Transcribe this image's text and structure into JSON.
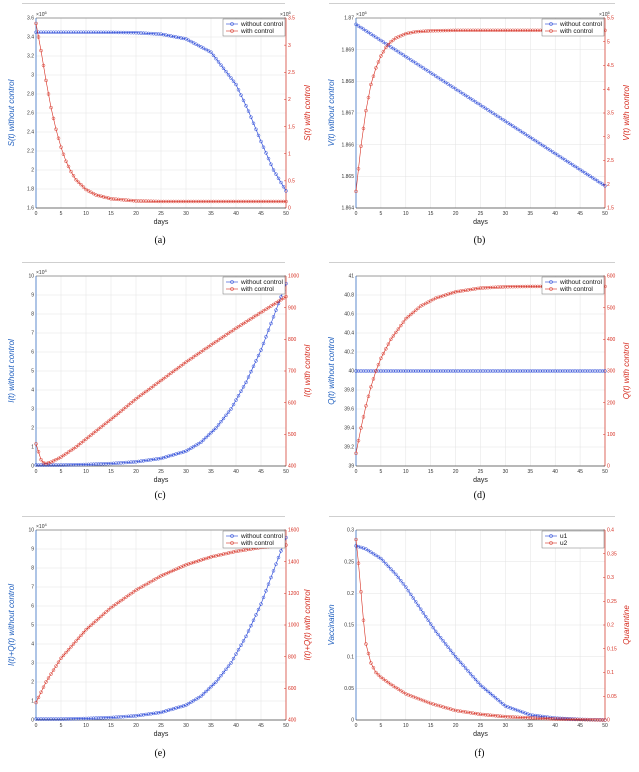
{
  "figure": {
    "captions": [
      "(a)",
      "(b)",
      "(c)",
      "(d)",
      "(e)",
      "(f)"
    ]
  },
  "chart_data": [
    {
      "type": "line",
      "panel_caption": "(a)",
      "xlabel": "days",
      "x_ticks": [
        0,
        5,
        10,
        15,
        20,
        25,
        30,
        35,
        40,
        45,
        50
      ],
      "xlim": [
        0,
        50
      ],
      "ylabel_left": "S(t) without control",
      "ylabel_right": "S(t) with control",
      "left_axis": {
        "ylim": [
          1.6,
          3.6
        ],
        "ticks": [
          "1.6",
          "1.8",
          "2",
          "2.2",
          "2.4",
          "2.6",
          "2.8",
          "3",
          "3.2",
          "3.4",
          "3.6"
        ],
        "exponent": "×10^6"
      },
      "right_axis": {
        "ylim": [
          0,
          3.5
        ],
        "ticks": [
          "0",
          "0.5",
          "1",
          "1.5",
          "2",
          "2.5",
          "3",
          "3.5"
        ],
        "exponent": "×10^6"
      },
      "legend": [
        "without control",
        "with control"
      ],
      "legend_position": "top-right",
      "series": [
        {
          "name": "without control",
          "axis": "left",
          "color": "#1f3fd6",
          "marker": "circle",
          "x": [
            0,
            5,
            10,
            15,
            20,
            25,
            30,
            35,
            40,
            42.5,
            45,
            47.5,
            50
          ],
          "y": [
            3.45,
            3.45,
            3.45,
            3.449,
            3.445,
            3.43,
            3.38,
            3.24,
            2.9,
            2.62,
            2.3,
            2.0,
            1.78
          ]
        },
        {
          "name": "with control",
          "axis": "right",
          "color": "#d62d20",
          "marker": "circle",
          "x": [
            0,
            1,
            2,
            3,
            4,
            5,
            6,
            7,
            8,
            10,
            12,
            15,
            20,
            25,
            30,
            40,
            50
          ],
          "y": [
            3.4,
            2.9,
            2.35,
            1.85,
            1.45,
            1.12,
            0.86,
            0.67,
            0.52,
            0.34,
            0.24,
            0.17,
            0.13,
            0.12,
            0.12,
            0.12,
            0.12
          ]
        }
      ]
    },
    {
      "type": "line",
      "panel_caption": "(b)",
      "xlabel": "days",
      "x_ticks": [
        0,
        5,
        10,
        15,
        20,
        25,
        30,
        35,
        40,
        45,
        50
      ],
      "xlim": [
        0,
        50
      ],
      "ylabel_left": "V(t) without control",
      "ylabel_right": "V(t) with control",
      "left_axis": {
        "ylim": [
          1.864,
          1.87
        ],
        "ticks": [
          "1.864",
          "1.865",
          "1.866",
          "1.867",
          "1.868",
          "1.869",
          "1.87"
        ],
        "exponent": "×10^6"
      },
      "right_axis": {
        "ylim": [
          1.5,
          5.5
        ],
        "ticks": [
          "1.5",
          "2",
          "2.5",
          "3",
          "3.5",
          "4",
          "4.5",
          "5",
          "5.5"
        ],
        "exponent": "×10^6"
      },
      "legend": [
        "without control",
        "with control"
      ],
      "legend_position": "top-right",
      "series": [
        {
          "name": "without control",
          "axis": "left",
          "color": "#1f3fd6",
          "marker": "circle",
          "x": [
            0,
            50
          ],
          "y": [
            1.8698,
            1.8647
          ]
        },
        {
          "name": "with control",
          "axis": "right",
          "color": "#d62d20",
          "marker": "circle",
          "x": [
            0,
            1,
            2,
            3,
            4,
            5,
            6,
            7,
            8,
            10,
            12,
            15,
            20,
            25,
            30,
            40,
            50
          ],
          "y": [
            1.85,
            2.8,
            3.55,
            4.1,
            4.45,
            4.7,
            4.88,
            5.0,
            5.08,
            5.17,
            5.21,
            5.23,
            5.24,
            5.24,
            5.24,
            5.24,
            5.24
          ]
        }
      ]
    },
    {
      "type": "line",
      "panel_caption": "(c)",
      "xlabel": "days",
      "x_ticks": [
        0,
        5,
        10,
        15,
        20,
        25,
        30,
        35,
        40,
        45,
        50
      ],
      "xlim": [
        0,
        50
      ],
      "ylabel_left": "I(t) without control",
      "ylabel_right": "I(t) with control",
      "left_axis": {
        "ylim": [
          0,
          10
        ],
        "ticks": [
          "0",
          "1",
          "2",
          "3",
          "4",
          "5",
          "6",
          "7",
          "8",
          "9",
          "10"
        ],
        "exponent": "×10^4"
      },
      "right_axis": {
        "ylim": [
          400,
          1000
        ],
        "ticks": [
          "400",
          "500",
          "600",
          "700",
          "800",
          "900",
          "1000"
        ],
        "exponent": ""
      },
      "legend": [
        "without control",
        "with control"
      ],
      "legend_position": "top-right",
      "series": [
        {
          "name": "without control",
          "axis": "left",
          "color": "#1f3fd6",
          "marker": "circle",
          "x": [
            0,
            5,
            10,
            15,
            20,
            25,
            30,
            33,
            36,
            39,
            42,
            45,
            48,
            50
          ],
          "y": [
            0.05,
            0.05,
            0.08,
            0.13,
            0.22,
            0.4,
            0.78,
            1.25,
            2.0,
            3.0,
            4.4,
            6.1,
            8.2,
            9.6
          ]
        },
        {
          "name": "with control",
          "axis": "right",
          "color": "#d62d20",
          "marker": "circle",
          "x": [
            0,
            0.5,
            1,
            1.5,
            2,
            3,
            5,
            8,
            12,
            16,
            20,
            25,
            30,
            35,
            40,
            45,
            50
          ],
          "y": [
            470,
            445,
            420,
            410,
            408,
            412,
            428,
            460,
            510,
            560,
            612,
            670,
            728,
            782,
            835,
            885,
            935
          ]
        }
      ]
    },
    {
      "type": "line",
      "panel_caption": "(d)",
      "xlabel": "days",
      "x_ticks": [
        0,
        5,
        10,
        15,
        20,
        25,
        30,
        35,
        40,
        45,
        50
      ],
      "xlim": [
        0,
        50
      ],
      "ylabel_left": "Q(t) without control",
      "ylabel_right": "Q(t) with control",
      "left_axis": {
        "ylim": [
          39,
          41
        ],
        "ticks": [
          "39",
          "39.2",
          "39.4",
          "39.6",
          "39.8",
          "40",
          "40.2",
          "40.4",
          "40.6",
          "40.8",
          "41"
        ],
        "exponent": ""
      },
      "right_axis": {
        "ylim": [
          0,
          600
        ],
        "ticks": [
          "0",
          "100",
          "200",
          "300",
          "400",
          "500",
          "600"
        ],
        "exponent": ""
      },
      "legend": [
        "without control",
        "with control"
      ],
      "legend_position": "top-right",
      "series": [
        {
          "name": "without control",
          "axis": "left",
          "color": "#1f3fd6",
          "marker": "circle",
          "x": [
            0,
            50
          ],
          "y": [
            40,
            40
          ]
        },
        {
          "name": "with control",
          "axis": "right",
          "color": "#d62d20",
          "marker": "circle",
          "x": [
            0,
            1,
            2,
            3,
            4,
            5,
            7,
            10,
            13,
            16,
            20,
            25,
            30,
            35,
            40,
            45,
            50
          ],
          "y": [
            40,
            120,
            190,
            250,
            300,
            340,
            400,
            465,
            505,
            530,
            550,
            562,
            566,
            567,
            567,
            567,
            567
          ]
        }
      ]
    },
    {
      "type": "line",
      "panel_caption": "(e)",
      "xlabel": "days",
      "x_ticks": [
        0,
        5,
        10,
        15,
        20,
        25,
        30,
        35,
        40,
        45,
        50
      ],
      "xlim": [
        0,
        50
      ],
      "ylabel_left": "I(t)+Q(t) without control",
      "ylabel_right": "I(t)+Q(t) with control",
      "left_axis": {
        "ylim": [
          0,
          10
        ],
        "ticks": [
          "0",
          "1",
          "2",
          "3",
          "4",
          "5",
          "6",
          "7",
          "8",
          "9",
          "10"
        ],
        "exponent": "×10^4"
      },
      "right_axis": {
        "ylim": [
          400,
          1600
        ],
        "ticks": [
          "400",
          "600",
          "800",
          "1000",
          "1200",
          "1400",
          "1600"
        ],
        "exponent": ""
      },
      "legend": [
        "without control",
        "with control"
      ],
      "legend_position": "top-right",
      "series": [
        {
          "name": "without control",
          "axis": "left",
          "color": "#1f3fd6",
          "marker": "circle",
          "x": [
            0,
            5,
            10,
            15,
            20,
            25,
            30,
            33,
            36,
            39,
            42,
            45,
            48,
            50
          ],
          "y": [
            0.05,
            0.05,
            0.08,
            0.13,
            0.22,
            0.4,
            0.78,
            1.25,
            2.0,
            3.0,
            4.4,
            6.1,
            8.2,
            9.6
          ]
        },
        {
          "name": "with control",
          "axis": "right",
          "color": "#d62d20",
          "marker": "circle",
          "x": [
            0,
            2,
            5,
            10,
            15,
            20,
            25,
            30,
            35,
            40,
            45,
            50
          ],
          "y": [
            510,
            640,
            790,
            970,
            1110,
            1220,
            1310,
            1380,
            1430,
            1465,
            1490,
            1505
          ]
        }
      ]
    },
    {
      "type": "line",
      "panel_caption": "(f)",
      "xlabel": "days",
      "x_ticks": [
        0,
        5,
        10,
        15,
        20,
        25,
        30,
        35,
        40,
        45,
        50
      ],
      "xlim": [
        0,
        50
      ],
      "ylabel_left": "Vaccination",
      "ylabel_right": "Quarantine",
      "left_axis": {
        "ylim": [
          0,
          0.3
        ],
        "ticks": [
          "0",
          "0.05",
          "0.1",
          "0.15",
          "0.2",
          "0.25",
          "0.3"
        ],
        "exponent": ""
      },
      "right_axis": {
        "ylim": [
          0,
          0.4
        ],
        "ticks": [
          "0",
          "0.05",
          "0.1",
          "0.15",
          "0.2",
          "0.25",
          "0.3",
          "0.35",
          "0.4"
        ],
        "exponent": ""
      },
      "legend": [
        "u1",
        "u2"
      ],
      "legend_position": "top-right",
      "series": [
        {
          "name": "u1",
          "axis": "left",
          "color": "#1f3fd6",
          "marker": "circle",
          "x": [
            0,
            2,
            5,
            8,
            10,
            13,
            16,
            20,
            25,
            30,
            35,
            40,
            45,
            50
          ],
          "y": [
            0.275,
            0.27,
            0.255,
            0.23,
            0.21,
            0.175,
            0.14,
            0.1,
            0.055,
            0.022,
            0.008,
            0.003,
            0.001,
            0
          ]
        },
        {
          "name": "u2",
          "axis": "right",
          "color": "#d62d20",
          "marker": "circle",
          "x": [
            0,
            0.5,
            1,
            1.5,
            2,
            3,
            4,
            5,
            7,
            10,
            15,
            20,
            25,
            30,
            40,
            50
          ],
          "y": [
            0.38,
            0.33,
            0.27,
            0.21,
            0.16,
            0.12,
            0.1,
            0.09,
            0.075,
            0.055,
            0.035,
            0.02,
            0.012,
            0.007,
            0.002,
            0
          ]
        }
      ]
    }
  ]
}
